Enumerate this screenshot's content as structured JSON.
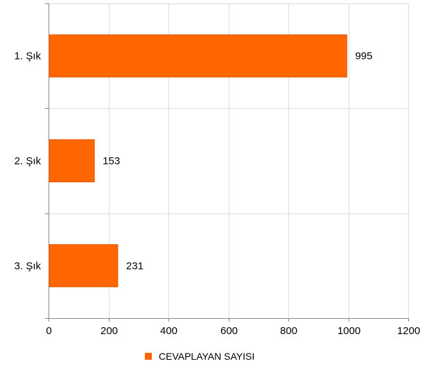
{
  "chart_data": {
    "type": "bar",
    "orientation": "horizontal",
    "categories": [
      "1. Şık",
      "2. Şık",
      "3. Şık"
    ],
    "series": [
      {
        "name": "CEVAPLAYAN SAYISI",
        "values": [
          995,
          153,
          231
        ],
        "color": "#ff6600"
      }
    ],
    "data_labels": [
      "995",
      "153",
      "231"
    ],
    "xlim": [
      0,
      1200
    ],
    "x_ticks": [
      0,
      200,
      400,
      600,
      800,
      1000,
      1200
    ],
    "x_tick_labels": [
      "0",
      "200",
      "400",
      "600",
      "800",
      "1000",
      "1200"
    ],
    "grid": true,
    "legend_position": "bottom"
  },
  "colors": {
    "bar_fill": "#ff6600",
    "bar_stroke": "#e05a00",
    "grid": "#dcdcdc",
    "axis": "#888888",
    "text": "#000000"
  }
}
